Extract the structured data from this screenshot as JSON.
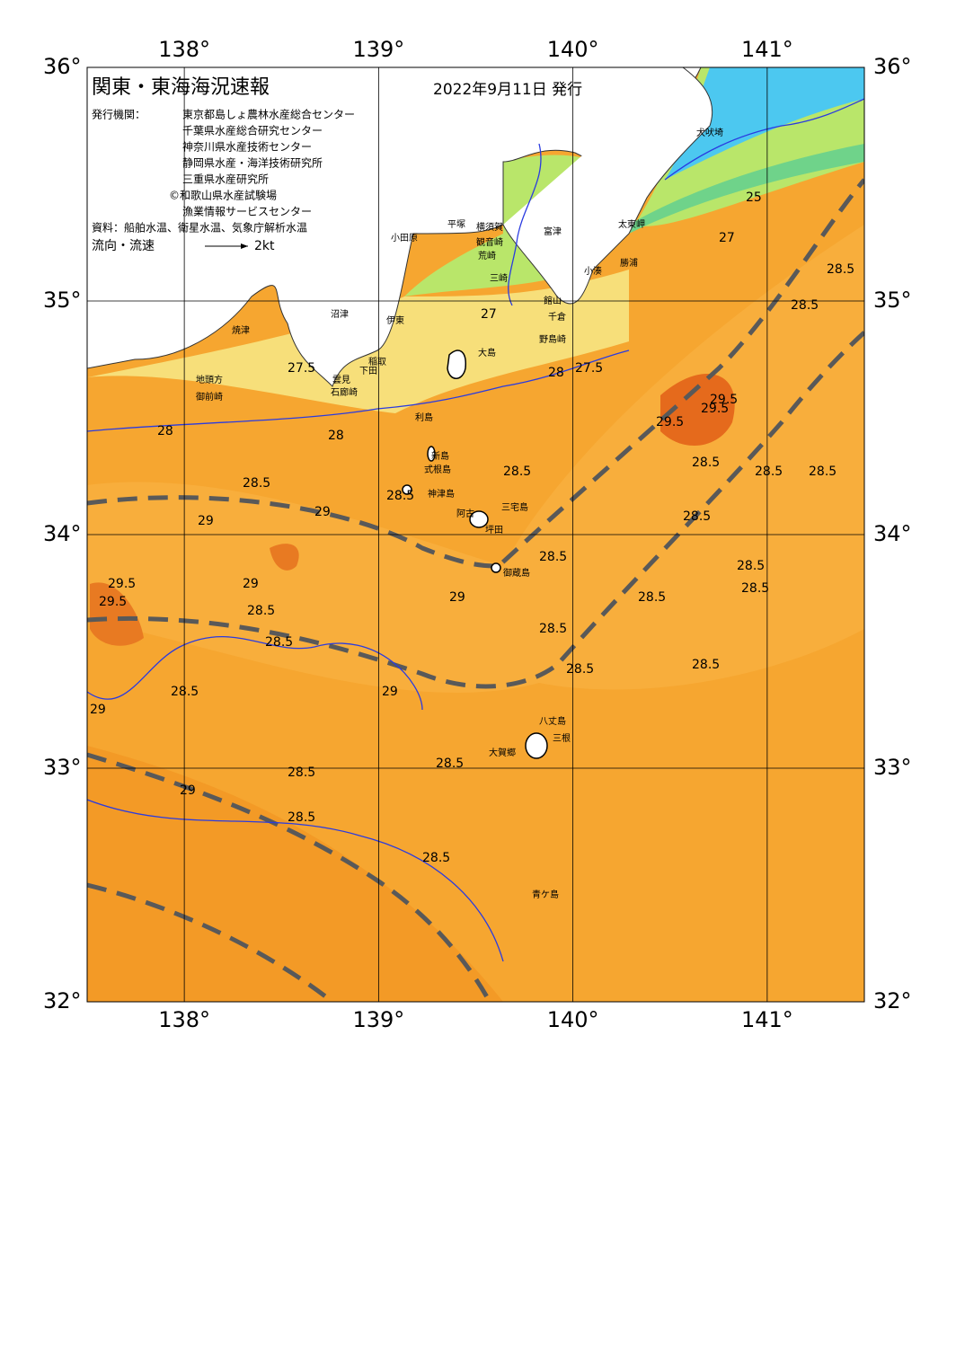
{
  "header": {
    "title": "関東・東海海況速報",
    "date": "2022年9月11日 発行"
  },
  "issuers": {
    "label": "発行機関：",
    "names": [
      "東京都島しょ農林水産総合センター",
      "千葉県水産総合研究センター",
      "神奈川県水産技術センター",
      "静岡県水産・海洋技術研究所",
      "三重県水産研究所",
      "©和歌山県水産試験場",
      "漁業情報サービスセンター"
    ]
  },
  "source": "資料：船舶水温、衛星水温、気象庁解析水温",
  "flow_legend": {
    "label": "流向・流速",
    "speed": "2kt"
  },
  "map": {
    "lon_range": [
      137.5,
      141.5
    ],
    "lat_range": [
      32,
      36
    ],
    "lon_ticks": [
      {
        "value": 138,
        "label": "138°"
      },
      {
        "value": 139,
        "label": "139°"
      },
      {
        "value": 140,
        "label": "140°"
      },
      {
        "value": 141,
        "label": "141°"
      }
    ],
    "lat_ticks": [
      {
        "value": 32,
        "label": "32°"
      },
      {
        "value": 33,
        "label": "33°"
      },
      {
        "value": 34,
        "label": "34°"
      },
      {
        "value": 35,
        "label": "35°"
      },
      {
        "value": 36,
        "label": "36°"
      }
    ]
  },
  "places": [
    "犬吠埼",
    "太東岬",
    "勝浦",
    "小湊",
    "館山",
    "千倉",
    "野島崎",
    "富津",
    "横須賀",
    "観音崎",
    "平塚",
    "荒崎",
    "三崎",
    "小田原",
    "沼津",
    "伊東",
    "焼津",
    "稲取",
    "下田",
    "雲見",
    "石廊崎",
    "地頭方",
    "御前崎",
    "大島",
    "利島",
    "新島",
    "式根島",
    "神津島",
    "三宅島",
    "阿古",
    "坪田",
    "御蔵島",
    "八丈島",
    "三根",
    "大賀郷",
    "青ケ島"
  ],
  "contour_labels": [
    "27.5",
    "27",
    "27.5",
    "28",
    "28",
    "28.5",
    "28.5",
    "29",
    "29",
    "29.5",
    "29.5",
    "29.5",
    "28.5",
    "29",
    "28.5",
    "28.5",
    "29",
    "28.5",
    "28.5",
    "28.5",
    "28.5",
    "29",
    "28.5",
    "28.5",
    "28.5",
    "28.5",
    "29.5",
    "29.5",
    "28.5",
    "28.5",
    "28.5",
    "28.5",
    "28.5",
    "28.5",
    "28.5",
    "28",
    "27",
    "25",
    "28.5",
    "29",
    "29",
    "28.5",
    "28.5"
  ]
}
